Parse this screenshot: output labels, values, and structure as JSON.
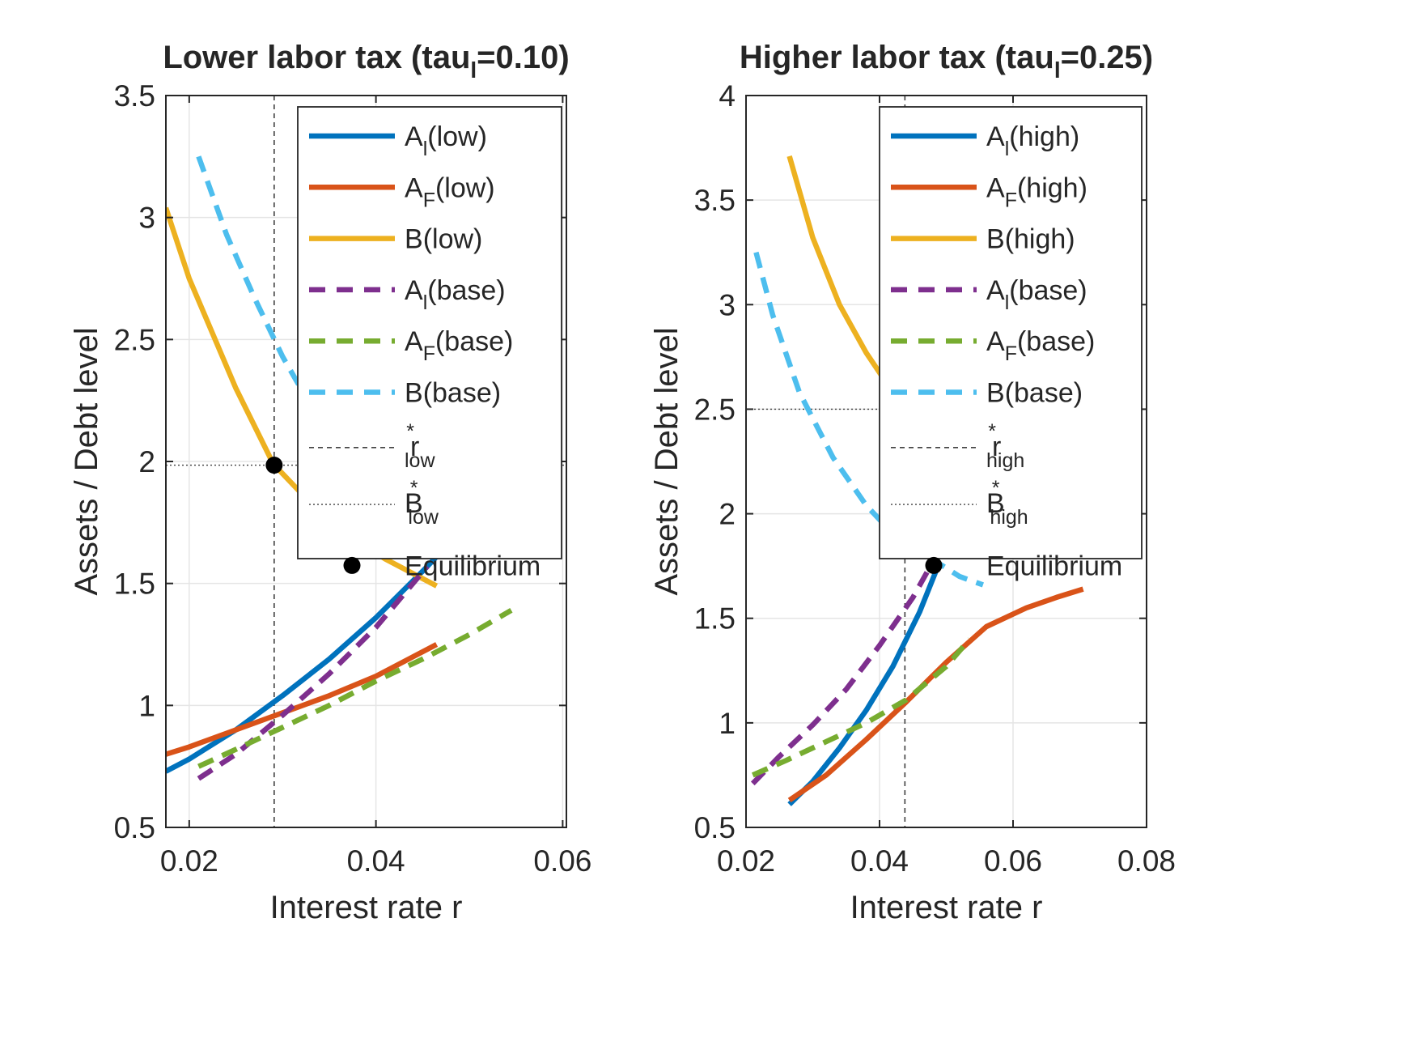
{
  "colors": {
    "blue": "#0072BD",
    "orange": "#D95319",
    "yellow": "#EDB120",
    "purple": "#7E2F8E",
    "green": "#77AC30",
    "cyan": "#4DBEEE",
    "grid": "#E5E5E5",
    "axis": "#262626"
  },
  "chart_data": [
    {
      "type": "line",
      "title": "Lower labor tax (tau",
      "title_sub": "l",
      "title_end": "=0.10)",
      "xlabel": "Interest rate r",
      "ylabel": "Assets / Debt level",
      "xlim": [
        0.0175,
        0.0604
      ],
      "ylim": [
        0.5,
        3.5
      ],
      "xticks": [
        0.02,
        0.04,
        0.06
      ],
      "xtick_labels": [
        "0.02",
        "0.04",
        "0.06"
      ],
      "yticks": [
        0.5,
        1,
        1.5,
        2,
        2.5,
        3,
        3.5
      ],
      "ytick_labels": [
        "0.5",
        "1",
        "1.5",
        "2",
        "2.5",
        "3",
        "3.5"
      ],
      "grid": true,
      "legend_position": "top-right",
      "series": [
        {
          "name": "A_l(low)",
          "main": "A",
          "sub": "l",
          "end": "(low)",
          "color": "blue",
          "dash": "solid",
          "x": [
            0.0175,
            0.02,
            0.025,
            0.03,
            0.035,
            0.04,
            0.045,
            0.048
          ],
          "y": [
            0.73,
            0.78,
            0.9,
            1.04,
            1.19,
            1.36,
            1.55,
            1.67
          ]
        },
        {
          "name": "A_F(low)",
          "main": "A",
          "sub": "F",
          "end": "(low)",
          "color": "orange",
          "dash": "solid",
          "x": [
            0.0175,
            0.02,
            0.025,
            0.03,
            0.035,
            0.04,
            0.0465
          ],
          "y": [
            0.8,
            0.83,
            0.9,
            0.97,
            1.04,
            1.12,
            1.25
          ]
        },
        {
          "name": "B(low)",
          "main": "B",
          "sub": "",
          "end": "(low)",
          "color": "yellow",
          "dash": "solid",
          "x": [
            0.0175,
            0.02,
            0.025,
            0.029,
            0.033,
            0.037,
            0.041,
            0.0465
          ],
          "y": [
            3.04,
            2.75,
            2.3,
            1.99,
            1.83,
            1.7,
            1.6,
            1.49
          ]
        },
        {
          "name": "A_l(base)",
          "main": "A",
          "sub": "l",
          "end": "(base)",
          "color": "purple",
          "dash": "dashed",
          "x": [
            0.021,
            0.025,
            0.03,
            0.035,
            0.04,
            0.0455
          ],
          "y": [
            0.7,
            0.8,
            0.96,
            1.13,
            1.32,
            1.57
          ]
        },
        {
          "name": "A_F(base)",
          "main": "A",
          "sub": "F",
          "end": "(base)",
          "color": "green",
          "dash": "dashed",
          "x": [
            0.021,
            0.025,
            0.03,
            0.035,
            0.04,
            0.045,
            0.05,
            0.0545
          ],
          "y": [
            0.75,
            0.82,
            0.91,
            1.0,
            1.1,
            1.19,
            1.29,
            1.39
          ]
        },
        {
          "name": "B(base)",
          "main": "B",
          "sub": "",
          "end": "(base)",
          "color": "cyan",
          "dash": "dashed",
          "x": [
            0.021,
            0.024,
            0.027,
            0.03,
            0.033,
            0.036
          ],
          "y": [
            3.25,
            2.93,
            2.67,
            2.43,
            2.23,
            2.05
          ]
        }
      ],
      "reference": {
        "vline_x": 0.0291,
        "hline_y": 1.985,
        "vline_name": "r*_low",
        "vline_main": "r",
        "vline_sup": "*",
        "vline_sub": "low",
        "hline_name": "B*_low",
        "hline_main": "B",
        "hline_sup": "*",
        "hline_sub": "low"
      },
      "equilibrium": {
        "name": "Equilibrium",
        "x": 0.0291,
        "y": 1.985
      }
    },
    {
      "type": "line",
      "title": "Higher labor tax (tau",
      "title_sub": "l",
      "title_end": "=0.25)",
      "xlabel": "Interest rate r",
      "ylabel": "Assets / Debt level",
      "xlim": [
        0.02,
        0.08
      ],
      "ylim": [
        0.5,
        4
      ],
      "xticks": [
        0.02,
        0.04,
        0.06,
        0.08
      ],
      "xtick_labels": [
        "0.02",
        "0.04",
        "0.06",
        "0.08"
      ],
      "yticks": [
        0.5,
        1,
        1.5,
        2,
        2.5,
        3,
        3.5,
        4
      ],
      "ytick_labels": [
        "0.5",
        "1",
        "1.5",
        "2",
        "2.5",
        "3",
        "3.5",
        "4"
      ],
      "grid": true,
      "legend_position": "top-right",
      "series": [
        {
          "name": "A_l(high)",
          "main": "A",
          "sub": "l",
          "end": "(high)",
          "color": "blue",
          "dash": "solid",
          "x": [
            0.0265,
            0.03,
            0.034,
            0.038,
            0.042,
            0.046,
            0.049
          ],
          "y": [
            0.61,
            0.72,
            0.88,
            1.06,
            1.27,
            1.53,
            1.77
          ]
        },
        {
          "name": "A_F(high)",
          "main": "A",
          "sub": "F",
          "end": "(high)",
          "color": "orange",
          "dash": "solid",
          "x": [
            0.0265,
            0.032,
            0.038,
            0.044,
            0.05,
            0.056,
            0.062,
            0.0665,
            0.0705
          ],
          "y": [
            0.63,
            0.75,
            0.92,
            1.1,
            1.29,
            1.46,
            1.55,
            1.6,
            1.64
          ]
        },
        {
          "name": "B(high)",
          "main": "B",
          "sub": "",
          "end": "(high)",
          "color": "yellow",
          "dash": "solid",
          "x": [
            0.0265,
            0.03,
            0.034,
            0.038,
            0.042,
            0.045
          ],
          "y": [
            3.71,
            3.32,
            3.0,
            2.77,
            2.58,
            2.45
          ]
        },
        {
          "name": "A_l(base)",
          "main": "A",
          "sub": "l",
          "end": "(base)",
          "color": "purple",
          "dash": "dashed",
          "x": [
            0.021,
            0.025,
            0.03,
            0.035,
            0.04,
            0.045,
            0.0485
          ],
          "y": [
            0.71,
            0.84,
            0.99,
            1.16,
            1.37,
            1.6,
            1.8
          ]
        },
        {
          "name": "A_F(base)",
          "main": "A",
          "sub": "F",
          "end": "(base)",
          "color": "green",
          "dash": "dashed",
          "x": [
            0.021,
            0.026,
            0.032,
            0.038,
            0.044,
            0.05,
            0.0535
          ],
          "y": [
            0.75,
            0.82,
            0.91,
            1.0,
            1.11,
            1.27,
            1.4
          ]
        },
        {
          "name": "B(base)",
          "main": "B",
          "sub": "",
          "end": "(base)",
          "color": "cyan",
          "dash": "dashed",
          "x": [
            0.0215,
            0.024,
            0.028,
            0.033,
            0.038,
            0.043,
            0.048,
            0.052,
            0.0555
          ],
          "y": [
            3.25,
            2.95,
            2.58,
            2.27,
            2.04,
            1.87,
            1.78,
            1.7,
            1.66
          ]
        }
      ],
      "reference": {
        "vline_x": 0.0438,
        "hline_y": 2.5,
        "vline_name": "r*_high",
        "vline_main": "r",
        "vline_sup": "*",
        "vline_sub": "high",
        "hline_name": "B*_high",
        "hline_main": "B",
        "hline_sup": "*",
        "hline_sub": "high"
      },
      "equilibrium": {
        "name": "Equilibrium",
        "x": 0.0438,
        "y": 2.5
      }
    }
  ]
}
